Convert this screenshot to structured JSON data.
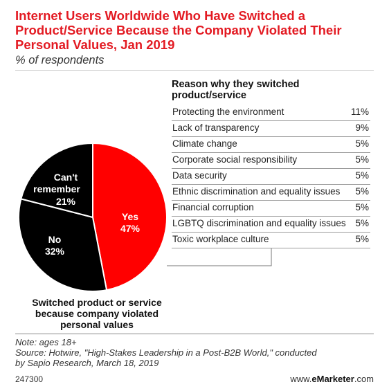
{
  "header": {
    "title": "Internet Users Worldwide Who Have Switched a Product/Service Because the Company Violated Their Personal Values, Jan 2019",
    "subtitle": "% of respondents"
  },
  "pie": {
    "caption": "Switched product or service because company violated personal values",
    "slices": [
      {
        "label": "Yes",
        "value": 47,
        "value_text": "47%",
        "color": "#ff0000"
      },
      {
        "label": "No",
        "value": 32,
        "value_text": "32%",
        "color": "#000000"
      },
      {
        "label_lines": [
          "Can't",
          "remember"
        ],
        "value": 21,
        "value_text": "21%",
        "color": "#000000"
      }
    ]
  },
  "table": {
    "heading_lines": [
      "Reason why they switched",
      "product/service"
    ],
    "rows": [
      {
        "label": "Protecting the environment",
        "value": 11,
        "value_text": "11%"
      },
      {
        "label": "Lack of transparency",
        "value": 9,
        "value_text": "9%"
      },
      {
        "label": "Climate change",
        "value": 5,
        "value_text": "5%"
      },
      {
        "label": "Corporate social responsibility",
        "value": 5,
        "value_text": "5%"
      },
      {
        "label": "Data security",
        "value": 5,
        "value_text": "5%"
      },
      {
        "label": "Ethnic discrimination and equality issues",
        "value": 5,
        "value_text": "5%"
      },
      {
        "label": "Financial corruption",
        "value": 5,
        "value_text": "5%"
      },
      {
        "label": "LGBTQ discrimination and equality issues",
        "value": 5,
        "value_text": "5%"
      },
      {
        "label": "Toxic workplace culture",
        "value": 5,
        "value_text": "5%"
      }
    ]
  },
  "footer": {
    "note": "Note: ages 18+",
    "source_lines": [
      "Source: Hotwire, \"High-Stakes Leadership in a Post-B2B World,\" conducted",
      "by Sapio Research, March 18, 2019"
    ],
    "chart_id": "247300",
    "brand_prefix": "www.",
    "brand_name": "eMarketer",
    "brand_suffix": ".com"
  },
  "chart_data": [
    {
      "type": "pie",
      "title": "Internet Users Worldwide Who Have Switched a Product/Service Because the Company Violated Their Personal Values, Jan 2019",
      "subtitle": "% of respondents",
      "caption": "Switched product or service because company violated personal values",
      "categories": [
        "Yes",
        "No",
        "Can't remember"
      ],
      "values": [
        47,
        32,
        21
      ],
      "unit": "%"
    },
    {
      "type": "table",
      "title": "Reason why they switched product/service",
      "categories": [
        "Protecting the environment",
        "Lack of transparency",
        "Climate change",
        "Corporate social responsibility",
        "Data security",
        "Ethnic discrimination and equality issues",
        "Financial corruption",
        "LGBTQ discrimination and equality issues",
        "Toxic workplace culture"
      ],
      "values": [
        11,
        9,
        5,
        5,
        5,
        5,
        5,
        5,
        5
      ],
      "unit": "%"
    }
  ]
}
